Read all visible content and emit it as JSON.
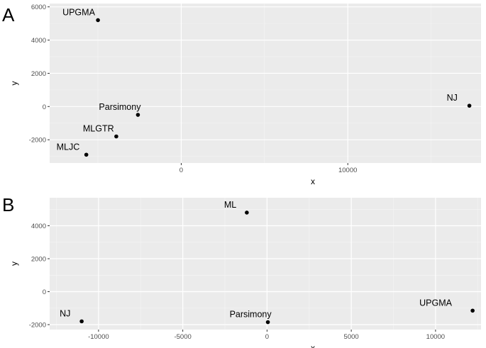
{
  "chart_data": [
    {
      "type": "scatter",
      "tag": "A",
      "xlabel": "x",
      "ylabel": "y",
      "xlim": [
        -7900,
        18000
      ],
      "ylim": [
        -3400,
        6200
      ],
      "x_ticks": [
        0,
        10000
      ],
      "x_tick_labels": [
        "0",
        "10000"
      ],
      "y_ticks": [
        -2000,
        0,
        2000,
        4000,
        6000
      ],
      "y_tick_labels": [
        "-2000",
        "0",
        "2000",
        "4000",
        "6000"
      ],
      "grid": true,
      "points": [
        {
          "label": "UPGMA",
          "x": -5000,
          "y": 5200
        },
        {
          "label": "Parsimony",
          "x": -2600,
          "y": -500
        },
        {
          "label": "MLGTR",
          "x": -3900,
          "y": -1800
        },
        {
          "label": "MLJC",
          "x": -5700,
          "y": -2900
        },
        {
          "label": "NJ",
          "x": 17300,
          "y": 50
        }
      ]
    },
    {
      "type": "scatter",
      "tag": "B",
      "xlabel": "x",
      "ylabel": "y",
      "xlim": [
        -12900,
        12700
      ],
      "ylim": [
        -2300,
        5700
      ],
      "x_ticks": [
        -10000,
        -5000,
        0,
        5000,
        10000
      ],
      "x_tick_labels": [
        "-10000",
        "-5000",
        "0",
        "5000",
        "10000"
      ],
      "y_ticks": [
        -2000,
        0,
        2000,
        4000
      ],
      "y_tick_labels": [
        "-2000",
        "0",
        "2000",
        "4000"
      ],
      "grid": true,
      "points": [
        {
          "label": "ML",
          "x": -1200,
          "y": 4800
        },
        {
          "label": "NJ",
          "x": -11000,
          "y": -1800
        },
        {
          "label": "Parsimony",
          "x": 50,
          "y": -1850
        },
        {
          "label": "UPGMA",
          "x": 12200,
          "y": -1150
        }
      ]
    }
  ]
}
